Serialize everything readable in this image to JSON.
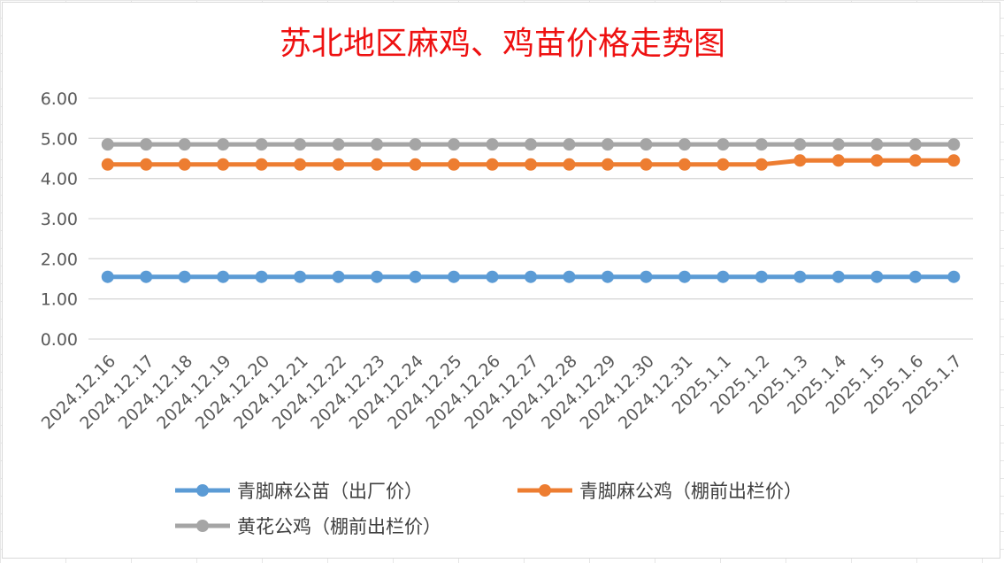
{
  "chart_data": {
    "type": "line",
    "title": "苏北地区麻鸡、鸡苗价格走势图",
    "xlabel": "",
    "ylabel": "",
    "ylim": [
      0,
      6
    ],
    "yticks": [
      "0.00",
      "1.00",
      "2.00",
      "3.00",
      "4.00",
      "5.00",
      "6.00"
    ],
    "grid": true,
    "legend_position": "bottom",
    "categories": [
      "2024.12.16",
      "2024.12.17",
      "2024.12.18",
      "2024.12.19",
      "2024.12.20",
      "2024.12.21",
      "2024.12.22",
      "2024.12.23",
      "2024.12.24",
      "2024.12.25",
      "2024.12.26",
      "2024.12.27",
      "2024.12.28",
      "2024.12.29",
      "2024.12.30",
      "2024.12.31",
      "2025.1.1",
      "2025.1.2",
      "2025.1.3",
      "2025.1.4",
      "2025.1.5",
      "2025.1.6",
      "2025.1.7"
    ],
    "series": [
      {
        "name": "青脚麻公苗（出厂价）",
        "color": "#5b9bd5",
        "values": [
          1.55,
          1.55,
          1.55,
          1.55,
          1.55,
          1.55,
          1.55,
          1.55,
          1.55,
          1.55,
          1.55,
          1.55,
          1.55,
          1.55,
          1.55,
          1.55,
          1.55,
          1.55,
          1.55,
          1.55,
          1.55,
          1.55,
          1.55
        ]
      },
      {
        "name": "青脚麻公鸡（棚前出栏价）",
        "color": "#ed7d31",
        "values": [
          4.35,
          4.35,
          4.35,
          4.35,
          4.35,
          4.35,
          4.35,
          4.35,
          4.35,
          4.35,
          4.35,
          4.35,
          4.35,
          4.35,
          4.35,
          4.35,
          4.35,
          4.35,
          4.45,
          4.45,
          4.45,
          4.45,
          4.45
        ]
      },
      {
        "name": "黄花公鸡（棚前出栏价）",
        "color": "#a5a5a5",
        "values": [
          4.85,
          4.85,
          4.85,
          4.85,
          4.85,
          4.85,
          4.85,
          4.85,
          4.85,
          4.85,
          4.85,
          4.85,
          4.85,
          4.85,
          4.85,
          4.85,
          4.85,
          4.85,
          4.85,
          4.85,
          4.85,
          4.85,
          4.85
        ]
      }
    ]
  }
}
